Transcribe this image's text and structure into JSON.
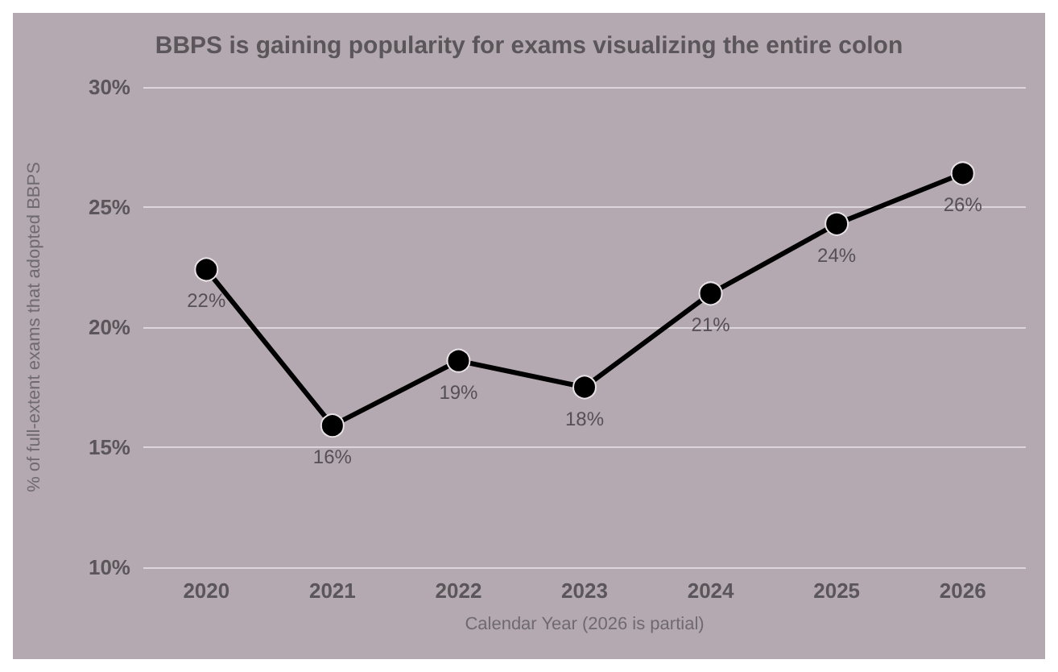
{
  "chart_data": {
    "type": "line",
    "title": "BBPS is gaining popularity for exams visualizing the entire colon",
    "xlabel": "Calendar Year (2026 is partial)",
    "ylabel": "% of full-extent exams that adopted BBPS",
    "categories": [
      "2020",
      "2021",
      "2022",
      "2023",
      "2024",
      "2025",
      "2026"
    ],
    "series": [
      {
        "color": "#000000",
        "values": [
          22.4,
          15.9,
          18.6,
          17.5,
          21.4,
          24.3,
          26.4
        ],
        "value_labels": [
          "22%",
          "16%",
          "19%",
          "18%",
          "21%",
          "24%",
          "26%"
        ]
      }
    ],
    "ylim": [
      10,
      30
    ],
    "yticks": [
      {
        "value": 10,
        "label": "10%"
      },
      {
        "value": 15,
        "label": "15%"
      },
      {
        "value": 20,
        "label": "20%"
      },
      {
        "value": 25,
        "label": "25%"
      },
      {
        "value": 30,
        "label": "30%"
      }
    ],
    "grid": "y",
    "marker": "circle",
    "line_style": "solid"
  }
}
